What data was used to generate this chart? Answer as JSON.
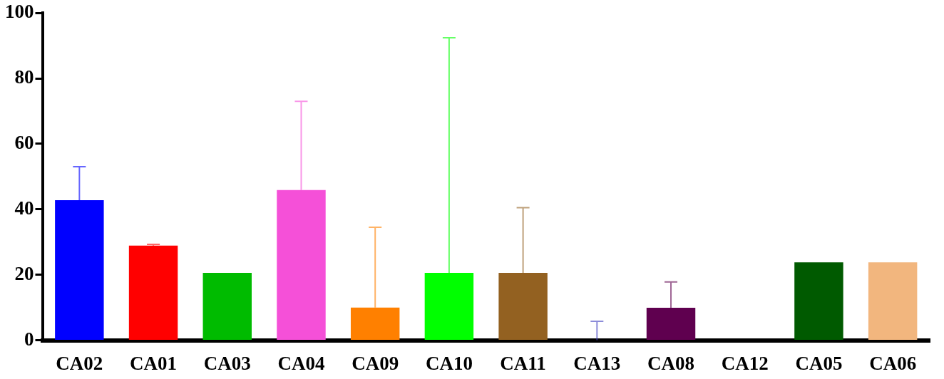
{
  "chart_data": {
    "type": "bar",
    "categories": [
      "CA02",
      "CA01",
      "CA03",
      "CA04",
      "CA09",
      "CA10",
      "CA11",
      "CA13",
      "CA08",
      "CA12",
      "CA05",
      "CA06"
    ],
    "values": [
      42.8,
      28.9,
      20.6,
      45.9,
      10,
      20.6,
      20.6,
      0,
      9.9,
      0,
      23.8,
      23.8
    ],
    "colors": [
      "#0000ff",
      "#ff0000",
      "#00bb00",
      "#f550d8",
      "#ff8000",
      "#00ff00",
      "#936121",
      "#3f3fbf",
      "#5f004f",
      "#000000",
      "#005a00",
      "#f2b67e"
    ],
    "errors": [
      [
        42.8,
        53
      ],
      [
        28.9,
        29.3
      ],
      null,
      [
        45.9,
        73
      ],
      [
        10,
        34.5
      ],
      [
        20.6,
        92.4
      ],
      [
        20.6,
        40.5
      ],
      [
        0,
        5.8
      ],
      [
        9.9,
        17.8
      ],
      null,
      null,
      null
    ],
    "ylim": [
      0,
      100
    ],
    "yticks": [
      0,
      20,
      40,
      60,
      80,
      100
    ],
    "grid": false,
    "legend": false
  }
}
